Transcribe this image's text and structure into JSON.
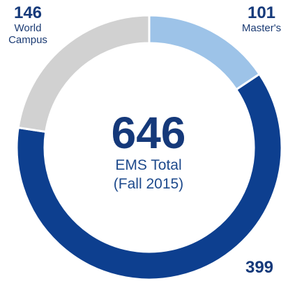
{
  "chart_data": {
    "type": "donut",
    "categories": [
      "Master's",
      null,
      "World Campus"
    ],
    "values": [
      101,
      399,
      146
    ],
    "colors": [
      "#9dc3e8",
      "#0d3f8f",
      "#d1d1d1"
    ],
    "total": 646,
    "center_label": [
      "EMS Total",
      "(Fall 2015)"
    ]
  }
}
